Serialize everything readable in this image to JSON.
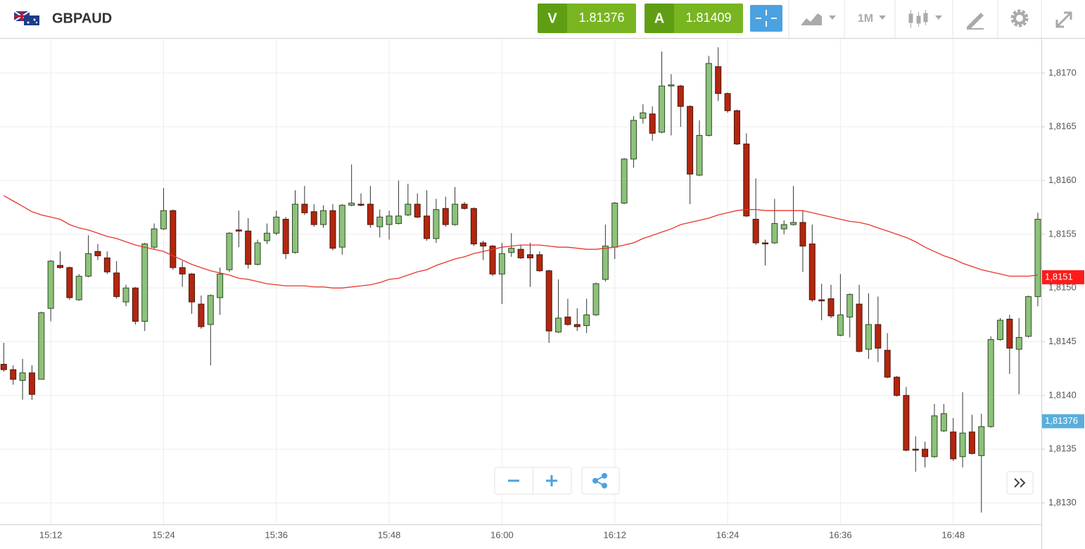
{
  "toolbar": {
    "symbol": "GBPAUD",
    "sell_label": "V",
    "sell_price": "1.81376",
    "buy_label": "A",
    "buy_price": "1.81409",
    "timeframe": "1M"
  },
  "chart_data": {
    "type": "candlestick",
    "categories": [
      null,
      null,
      null,
      null,
      null,
      "15:12",
      null,
      null,
      null,
      null,
      null,
      null,
      null,
      null,
      null,
      null,
      null,
      "15:24",
      null,
      null,
      null,
      null,
      null,
      null,
      null,
      null,
      null,
      null,
      null,
      "15:36",
      null,
      null,
      null,
      null,
      null,
      null,
      null,
      null,
      null,
      null,
      null,
      "15:48",
      null,
      null,
      null,
      null,
      null,
      null,
      null,
      null,
      null,
      null,
      null,
      "16:00",
      null,
      null,
      null,
      null,
      null,
      null,
      null,
      null,
      null,
      null,
      null,
      "16:12",
      null,
      null,
      null,
      null,
      null,
      null,
      null,
      null,
      null,
      null,
      null,
      "16:24",
      null,
      null,
      null,
      null,
      null,
      null,
      null,
      null,
      null,
      null,
      null,
      "16:36",
      null,
      null,
      null,
      null,
      null,
      null,
      null,
      null,
      null,
      null,
      null,
      "16:48",
      null,
      null,
      null,
      null,
      null,
      null,
      null,
      null,
      null
    ],
    "open": [
      1.81429,
      1.81424,
      1.81414,
      1.81421,
      1.81415,
      1.81481,
      1.81521,
      1.81519,
      1.81489,
      1.81511,
      1.81534,
      1.81528,
      1.81514,
      1.81487,
      1.815,
      1.81469,
      1.81538,
      1.81555,
      1.81572,
      1.81519,
      1.81513,
      1.81485,
      1.81466,
      1.81491,
      1.81517,
      1.81554,
      1.81553,
      1.81522,
      1.81544,
      1.81551,
      1.81564,
      1.81533,
      1.81578,
      1.81571,
      1.81559,
      1.81572,
      1.81538,
      1.81577,
      1.81578,
      1.81578,
      1.81557,
      1.81559,
      1.8156,
      1.81568,
      1.81578,
      1.81567,
      1.81546,
      1.81574,
      1.81559,
      1.81578,
      1.81574,
      1.81542,
      1.81539,
      1.81513,
      1.81533,
      1.81536,
      1.81531,
      1.81531,
      1.81516,
      1.81459,
      1.81473,
      1.81466,
      1.81465,
      1.81475,
      1.81508,
      1.81538,
      1.81579,
      1.8162,
      1.81658,
      1.81662,
      1.81645,
      1.81688,
      1.81688,
      1.81669,
      1.81605,
      1.81642,
      1.81706,
      1.81681,
      1.81665,
      1.81634,
      1.81564,
      1.81542,
      1.81542,
      1.81555,
      1.81559,
      1.81561,
      1.81541,
      1.81489,
      1.8149,
      1.81456,
      1.81473,
      1.81485,
      1.81443,
      1.81466,
      1.81442,
      1.81417,
      1.814,
      1.8135,
      1.8135,
      1.81343,
      1.81367,
      1.81366,
      1.81343,
      1.81366,
      1.81344,
      1.81371,
      1.81452,
      1.81471,
      1.81443,
      1.81455,
      1.81492
    ],
    "high": [
      1.81449,
      1.81428,
      1.81434,
      1.81428,
      1.81478,
      1.81526,
      1.81534,
      1.8152,
      1.81513,
      1.81549,
      1.81541,
      1.81534,
      1.81525,
      1.81503,
      1.81501,
      1.81542,
      1.8156,
      1.81593,
      1.81573,
      1.81525,
      1.81514,
      1.81493,
      1.81494,
      1.81519,
      1.81552,
      1.81572,
      1.81565,
      1.81545,
      1.8156,
      1.81572,
      1.81566,
      1.81591,
      1.81595,
      1.81578,
      1.81577,
      1.81578,
      1.81578,
      1.81615,
      1.81588,
      1.81595,
      1.81573,
      1.81572,
      1.816,
      1.81597,
      1.81588,
      1.81591,
      1.81583,
      1.81585,
      1.81594,
      1.8158,
      1.81575,
      1.81544,
      1.8154,
      1.81542,
      1.81551,
      1.8154,
      1.81542,
      1.81534,
      1.81517,
      1.81508,
      1.8149,
      1.81481,
      1.8149,
      1.81505,
      1.81559,
      1.8158,
      1.81621,
      1.8166,
      1.81671,
      1.81669,
      1.8172,
      1.81699,
      1.81689,
      1.8167,
      1.81656,
      1.81716,
      1.81724,
      1.81682,
      1.81666,
      1.81644,
      1.81602,
      1.81545,
      1.81583,
      1.81563,
      1.81595,
      1.81572,
      1.81559,
      1.81504,
      1.81503,
      1.81513,
      1.81495,
      1.81503,
      1.81495,
      1.81492,
      1.81458,
      1.81418,
      1.81408,
      1.81362,
      1.81357,
      1.81392,
      1.81392,
      1.81379,
      1.81403,
      1.81382,
      1.81383,
      1.81455,
      1.81472,
      1.81475,
      1.81472,
      1.81493,
      1.8157
    ],
    "low": [
      1.81422,
      1.8141,
      1.81396,
      1.81396,
      1.81415,
      1.81469,
      1.81518,
      1.81489,
      1.81488,
      1.8151,
      1.81526,
      1.81513,
      1.8149,
      1.81483,
      1.81466,
      1.8146,
      1.81536,
      1.81554,
      1.81517,
      1.81501,
      1.81476,
      1.81462,
      1.81428,
      1.81475,
      1.81515,
      1.81538,
      1.81518,
      1.81521,
      1.81541,
      1.81549,
      1.81527,
      1.81532,
      1.81568,
      1.81557,
      1.81556,
      1.81535,
      1.81531,
      1.81576,
      1.81576,
      1.81556,
      1.81547,
      1.81545,
      1.81559,
      1.81567,
      1.81565,
      1.81544,
      1.81542,
      1.81557,
      1.81558,
      1.81573,
      1.81539,
      1.81526,
      1.81511,
      1.81485,
      1.81529,
      1.81527,
      1.81501,
      1.81515,
      1.81449,
      1.81458,
      1.81465,
      1.8146,
      1.81458,
      1.81474,
      1.81506,
      1.81527,
      1.81578,
      1.81612,
      1.81653,
      1.81637,
      1.81644,
      1.81642,
      1.8165,
      1.81578,
      1.81604,
      1.81641,
      1.81674,
      1.81663,
      1.81633,
      1.81566,
      1.8154,
      1.81521,
      1.81541,
      1.8155,
      1.81558,
      1.81515,
      1.81487,
      1.8147,
      1.81472,
      1.81455,
      1.81454,
      1.8144,
      1.81434,
      1.81431,
      1.81416,
      1.81399,
      1.81348,
      1.81329,
      1.81333,
      1.81342,
      1.81366,
      1.81339,
      1.81333,
      1.81345,
      1.81291,
      1.8137,
      1.81451,
      1.8142,
      1.81401,
      1.81454,
      1.81483
    ],
    "close": [
      1.81424,
      1.81415,
      1.81421,
      1.81401,
      1.81477,
      1.81525,
      1.81519,
      1.81491,
      1.81511,
      1.81532,
      1.8153,
      1.81515,
      1.81492,
      1.815,
      1.81469,
      1.81541,
      1.81555,
      1.81572,
      1.81519,
      1.81513,
      1.81487,
      1.81464,
      1.81493,
      1.81513,
      1.81551,
      1.81553,
      1.81522,
      1.81542,
      1.81551,
      1.81566,
      1.81532,
      1.81578,
      1.8157,
      1.81559,
      1.81572,
      1.81537,
      1.81577,
      1.81579,
      1.81577,
      1.81559,
      1.81566,
      1.81567,
      1.81567,
      1.81578,
      1.81566,
      1.81546,
      1.81573,
      1.81559,
      1.81578,
      1.81574,
      1.81541,
      1.81539,
      1.81513,
      1.81532,
      1.81537,
      1.81528,
      1.81528,
      1.81516,
      1.8146,
      1.81472,
      1.81466,
      1.81464,
      1.81475,
      1.81504,
      1.81539,
      1.81579,
      1.8162,
      1.81656,
      1.81663,
      1.81644,
      1.81688,
      1.81689,
      1.81669,
      1.81606,
      1.81642,
      1.81709,
      1.81681,
      1.81665,
      1.81634,
      1.81567,
      1.81542,
      1.81541,
      1.8156,
      1.81559,
      1.81561,
      1.81539,
      1.81489,
      1.81488,
      1.81474,
      1.81475,
      1.81494,
      1.81441,
      1.81466,
      1.81444,
      1.81417,
      1.814,
      1.81349,
      1.81349,
      1.81343,
      1.81381,
      1.81383,
      1.81341,
      1.81365,
      1.81346,
      1.81371,
      1.81452,
      1.8147,
      1.81444,
      1.81454,
      1.81492,
      1.81564
    ],
    "up_color": "#8dc27b",
    "down_color": "#b3260f",
    "moving_average": {
      "type": "line",
      "color": "#e8352c",
      "values": [
        1.81586,
        1.81581,
        1.81576,
        1.81571,
        1.81568,
        1.81566,
        1.81564,
        1.81559,
        1.81556,
        1.81554,
        1.81551,
        1.81548,
        1.81546,
        1.81543,
        1.8154,
        1.81538,
        1.81536,
        1.81534,
        1.8153,
        1.81526,
        1.81522,
        1.81519,
        1.81516,
        1.81514,
        1.81512,
        1.81509,
        1.81508,
        1.81506,
        1.81504,
        1.81503,
        1.81502,
        1.81502,
        1.81502,
        1.81501,
        1.81501,
        1.815,
        1.815,
        1.81501,
        1.81502,
        1.81503,
        1.81505,
        1.81508,
        1.81509,
        1.81512,
        1.81515,
        1.81517,
        1.81521,
        1.81524,
        1.81527,
        1.81529,
        1.81532,
        1.81534,
        1.81536,
        1.81538,
        1.81539,
        1.8154,
        1.8154,
        1.8154,
        1.81539,
        1.81538,
        1.81538,
        1.81537,
        1.81536,
        1.81536,
        1.81537,
        1.81538,
        1.8154,
        1.81542,
        1.81546,
        1.81549,
        1.81552,
        1.81555,
        1.81559,
        1.81561,
        1.81563,
        1.81565,
        1.81568,
        1.8157,
        1.81572,
        1.81573,
        1.81573,
        1.81572,
        1.81572,
        1.81572,
        1.81572,
        1.81572,
        1.8157,
        1.81568,
        1.81566,
        1.81564,
        1.81562,
        1.81561,
        1.81559,
        1.81556,
        1.81553,
        1.8155,
        1.81547,
        1.81543,
        1.81538,
        1.81534,
        1.8153,
        1.81527,
        1.81523,
        1.8152,
        1.81517,
        1.81515,
        1.81513,
        1.81511,
        1.81511,
        1.81511,
        1.81512
      ]
    },
    "ylim": [
      1.8128,
      1.81732
    ],
    "yticks": [
      {
        "value": 1.813,
        "label": "1,8130"
      },
      {
        "value": 1.8135,
        "label": "1,8135"
      },
      {
        "value": 1.814,
        "label": "1,8140"
      },
      {
        "value": 1.8145,
        "label": "1,8145"
      },
      {
        "value": 1.815,
        "label": "1,8150"
      },
      {
        "value": 1.8155,
        "label": "1,8155"
      },
      {
        "value": 1.816,
        "label": "1,8160"
      },
      {
        "value": 1.8165,
        "label": "1,8165"
      },
      {
        "value": 1.817,
        "label": "1,8170"
      }
    ],
    "grid": true,
    "price_markers": [
      {
        "value": 1.8151,
        "label": "1,8151",
        "color": "#ff1a1a"
      },
      {
        "value": 1.81376,
        "label": "1,81376",
        "color": "#5aaedc"
      }
    ]
  }
}
